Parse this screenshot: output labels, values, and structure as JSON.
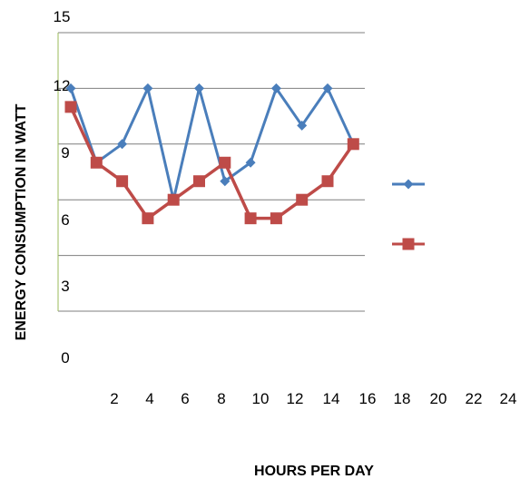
{
  "chart_data": {
    "type": "line",
    "title": "",
    "xlabel": "HOURS PER DAY",
    "ylabel": "ENERGY CONSUMPTION IN WATT",
    "x_ticks": [
      "2",
      "4",
      "6",
      "8",
      "10",
      "12",
      "14",
      "16",
      "18",
      "20",
      "22",
      "24"
    ],
    "y_ticks": [
      "0",
      "3",
      "6",
      "9",
      "12",
      "15"
    ],
    "ylim": [
      0,
      15
    ],
    "grid": "horizontal",
    "legend_position": "right",
    "x": [
      1,
      2,
      3,
      4,
      5,
      6,
      7,
      8,
      9,
      10,
      11,
      12
    ],
    "series": [
      {
        "marker": "diamond",
        "color": "#4a7ebb",
        "values": [
          12,
          8,
          9,
          12,
          6,
          12,
          7,
          8,
          12,
          10,
          12,
          9
        ]
      },
      {
        "marker": "square",
        "color": "#be4b48",
        "values": [
          11,
          8,
          7,
          5,
          6,
          7,
          8,
          5,
          5,
          6,
          7,
          9
        ]
      }
    ]
  }
}
